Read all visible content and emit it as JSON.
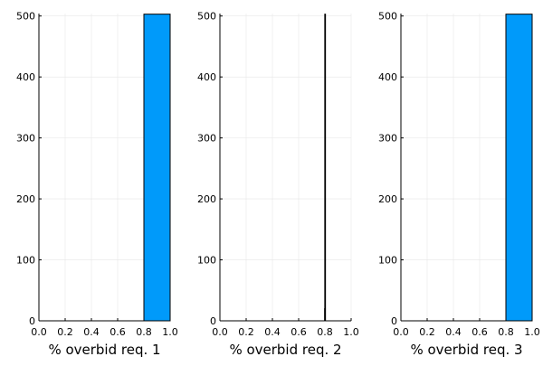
{
  "chart_data": [
    {
      "type": "bar",
      "xlabel": "% overbid req. 1",
      "ylabel": "",
      "xlim": [
        0.0,
        1.0
      ],
      "ylim": [
        0,
        504
      ],
      "xticks": [
        "0.0",
        "0.2",
        "0.4",
        "0.6",
        "0.8",
        "1.0"
      ],
      "yticks": [
        "0",
        "100",
        "200",
        "300",
        "400",
        "500"
      ],
      "grid": true,
      "legend": false,
      "bins": [
        {
          "x0": 0.8,
          "x1": 1.0,
          "value": 503
        }
      ]
    },
    {
      "type": "bar",
      "xlabel": "% overbid req. 2",
      "ylabel": "",
      "xlim": [
        0.0,
        1.0
      ],
      "ylim": [
        0,
        504
      ],
      "xticks": [
        "0.0",
        "0.2",
        "0.4",
        "0.6",
        "0.8",
        "1.0"
      ],
      "yticks": [
        "0",
        "100",
        "200",
        "300",
        "400",
        "500"
      ],
      "grid": true,
      "legend": false,
      "bins": [
        {
          "x0": 0.798,
          "x1": 0.799,
          "value": 20
        },
        {
          "x0": 0.799,
          "x1": 0.8,
          "value": 503
        }
      ]
    },
    {
      "type": "bar",
      "xlabel": "% overbid req. 3",
      "ylabel": "",
      "xlim": [
        0.0,
        1.0
      ],
      "ylim": [
        0,
        504
      ],
      "xticks": [
        "0.0",
        "0.2",
        "0.4",
        "0.6",
        "0.8",
        "1.0"
      ],
      "yticks": [
        "0",
        "100",
        "200",
        "300",
        "400",
        "500"
      ],
      "grid": true,
      "legend": false,
      "bins": [
        {
          "x0": 0.8,
          "x1": 1.0,
          "value": 503
        }
      ]
    }
  ],
  "colors": {
    "bar_fill": "#009AFA",
    "bar_stroke": "#000000",
    "grid": "#E6E6E6",
    "axis": "#000000"
  }
}
